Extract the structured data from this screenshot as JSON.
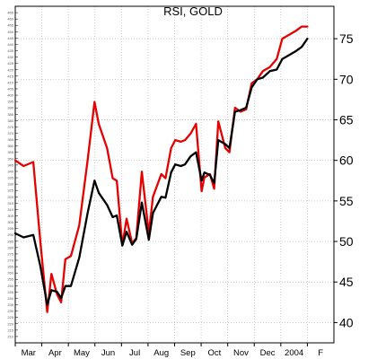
{
  "chart_data": {
    "type": "line",
    "title": "RSI, GOLD",
    "xlabel": "",
    "ylabel": "",
    "x_tick_labels": [
      "Mar",
      "Apr",
      "May",
      "Jun",
      "Jul",
      "Aug",
      "Sep",
      "Oct",
      "Nov",
      "Dec",
      "2004",
      "F"
    ],
    "right_axis": {
      "ylim": [
        37.5,
        79
      ],
      "ticks": [
        40,
        45,
        50,
        55,
        60,
        65,
        70,
        75
      ]
    },
    "left_axis": {
      "ylim": [
        205,
        470
      ],
      "ticks": [
        210,
        215,
        220,
        225,
        230,
        235,
        240,
        245,
        250,
        255,
        260,
        265,
        270,
        275,
        280,
        285,
        290,
        295,
        300,
        305,
        310,
        315,
        320,
        325,
        330,
        335,
        340,
        345,
        350,
        355,
        360,
        365,
        370,
        375,
        380,
        385,
        390,
        395,
        400,
        405,
        410,
        415,
        420,
        425,
        430,
        435,
        440,
        445,
        450,
        455,
        460,
        465
      ]
    },
    "grid": true,
    "colors": {
      "red": "#e60000",
      "black": "#000000"
    },
    "series": [
      {
        "color": "#e60000",
        "x": [
          0,
          0.6,
          1.3,
          1.8,
          2.3,
          2.6,
          3.0,
          3.3,
          3.6,
          4.0,
          4.6,
          5.2,
          5.7,
          6.0,
          6.6,
          7.0,
          7.3,
          7.7,
          8.0,
          8.4,
          8.7,
          9.1,
          9.6,
          9.9,
          10.5,
          10.8,
          11.2,
          11.5,
          11.9,
          12.2,
          12.6,
          13.0,
          13.4,
          13.6,
          14.0,
          14.3,
          14.6,
          15.1,
          15.4,
          15.8,
          16.2,
          16.6,
          17.0,
          17.4,
          17.8,
          18.3,
          18.8,
          19.2,
          19.7,
          20.2,
          20.6,
          21.0
        ],
        "y": [
          60,
          59.3,
          59.8,
          50,
          41.3,
          46,
          43.5,
          42.5,
          47.8,
          48.2,
          52,
          60,
          67.2,
          64.5,
          61.5,
          57.8,
          57.5,
          49.5,
          52.8,
          49.8,
          50.4,
          58.6,
          51,
          55.5,
          58.3,
          57.8,
          61.5,
          62.5,
          62.3,
          62.5,
          63.3,
          64.5,
          56.2,
          57.9,
          58.3,
          56.5,
          64.8,
          61.5,
          61,
          66.5,
          66,
          66.3,
          69.5,
          70,
          71,
          71.5,
          72.5,
          75,
          75.5,
          76,
          76.5,
          76.5
        ]
      },
      {
        "color": "#000000",
        "x": [
          0,
          0.6,
          1.3,
          1.8,
          2.3,
          2.6,
          3.0,
          3.3,
          3.6,
          4.0,
          4.6,
          5.2,
          5.7,
          6.0,
          6.6,
          7.0,
          7.3,
          7.7,
          8.0,
          8.4,
          8.7,
          9.1,
          9.6,
          9.9,
          10.5,
          10.8,
          11.2,
          11.5,
          11.9,
          12.2,
          12.6,
          13.0,
          13.4,
          13.6,
          14.0,
          14.3,
          14.6,
          15.1,
          15.4,
          15.8,
          16.2,
          16.6,
          17.0,
          17.4,
          17.8,
          18.3,
          18.8,
          19.2,
          19.7,
          20.2,
          20.6,
          21.0
        ],
        "y": [
          51,
          50.5,
          50.8,
          47,
          42.2,
          44,
          43.8,
          43,
          44.5,
          44.5,
          48,
          53.5,
          57.5,
          56,
          54.5,
          53,
          53.2,
          49.5,
          51.2,
          49.6,
          50.3,
          54.8,
          50.2,
          53.5,
          55.5,
          55.4,
          58.5,
          59.5,
          59.3,
          59.5,
          60.5,
          61,
          57.5,
          58.5,
          58.2,
          57.2,
          62.5,
          62,
          61.5,
          66,
          66.2,
          66.5,
          69,
          70,
          70.2,
          71,
          71.2,
          72.5,
          73,
          73.5,
          74,
          75
        ]
      }
    ]
  }
}
